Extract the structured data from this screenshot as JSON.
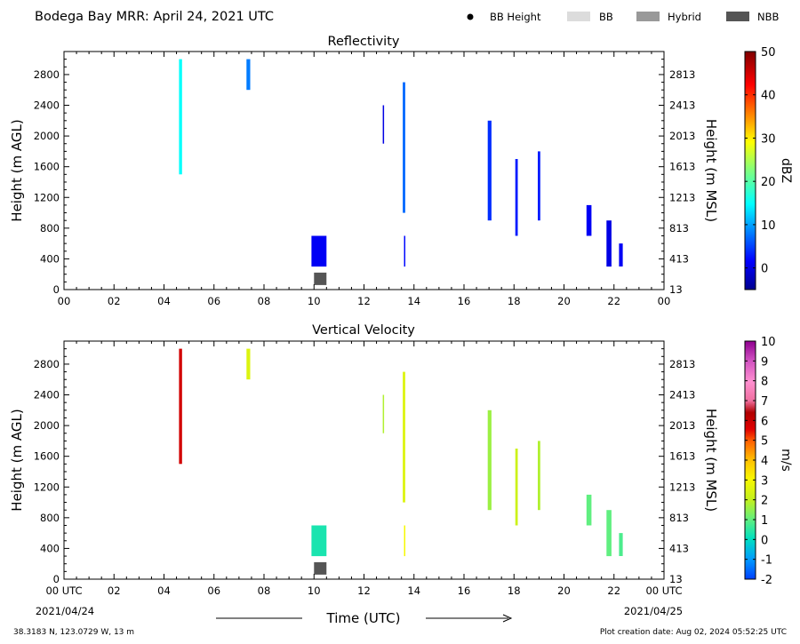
{
  "header": {
    "title": "Bodega Bay MRR:  April 24, 2021 UTC",
    "legend": [
      {
        "label": "BB Height",
        "kind": "dot",
        "color": "#000000"
      },
      {
        "label": "BB",
        "kind": "box",
        "color": "#dcdcdc"
      },
      {
        "label": "Hybrid",
        "kind": "box",
        "color": "#999999"
      },
      {
        "label": "NBB",
        "kind": "box",
        "color": "#555555"
      }
    ]
  },
  "footer": {
    "location": "38.3183 N, 123.0729 W, 13 m",
    "creation": "Plot creation date: Aug 02, 2024 05:52:25 UTC",
    "xlabel": "Time (UTC)",
    "start_date": "2021/04/24",
    "end_date": "2021/04/25"
  },
  "chart_data": [
    {
      "type": "heatmap",
      "title": "Reflectivity",
      "ylabel": "Height (m AGL)",
      "ylabel_right": "Height (m MSL)",
      "x_unit": "hour UTC",
      "xlim": [
        0,
        24
      ],
      "ylim": [
        0,
        3100
      ],
      "x_ticks": [
        "00",
        "02",
        "04",
        "06",
        "08",
        "10",
        "12",
        "14",
        "16",
        "18",
        "20",
        "22",
        "00"
      ],
      "y_ticks": [
        0,
        400,
        800,
        1200,
        1600,
        2000,
        2400,
        2800
      ],
      "y_ticks_right": [
        13,
        413,
        813,
        1213,
        1613,
        2013,
        2413,
        2813
      ],
      "grid": false,
      "colorbar": {
        "label": "dBZ",
        "min": -5,
        "max": 50,
        "ticks": [
          0,
          10,
          20,
          30,
          40,
          50
        ],
        "colormap": "jet"
      },
      "bright_band": [
        {
          "type": "NBB",
          "time": 10.25,
          "height": 140
        }
      ],
      "cells": [
        {
          "t0": 4.6,
          "t1": 4.72,
          "z0": 1500,
          "z1": 3000,
          "v": 15
        },
        {
          "t0": 7.3,
          "t1": 7.45,
          "z0": 2600,
          "z1": 3000,
          "v": 8
        },
        {
          "t0": 9.9,
          "t1": 10.5,
          "z0": 300,
          "z1": 700,
          "v": 1
        },
        {
          "t0": 12.75,
          "t1": 12.8,
          "z0": 1900,
          "z1": 2400,
          "v": 0
        },
        {
          "t0": 13.55,
          "t1": 13.65,
          "z0": 1000,
          "z1": 2700,
          "v": 7
        },
        {
          "t0": 13.6,
          "t1": 13.65,
          "z0": 300,
          "z1": 700,
          "v": 2
        },
        {
          "t0": 16.95,
          "t1": 17.1,
          "z0": 900,
          "z1": 2200,
          "v": 4
        },
        {
          "t0": 18.05,
          "t1": 18.15,
          "z0": 700,
          "z1": 1700,
          "v": 3
        },
        {
          "t0": 18.95,
          "t1": 19.05,
          "z0": 900,
          "z1": 1800,
          "v": 3
        },
        {
          "t0": 20.9,
          "t1": 21.1,
          "z0": 700,
          "z1": 1100,
          "v": 1
        },
        {
          "t0": 21.7,
          "t1": 21.9,
          "z0": 300,
          "z1": 900,
          "v": 0
        },
        {
          "t0": 22.2,
          "t1": 22.35,
          "z0": 300,
          "z1": 600,
          "v": 1
        }
      ]
    },
    {
      "type": "heatmap",
      "title": "Vertical Velocity",
      "ylabel": "Height (m AGL)",
      "ylabel_right": "Height (m MSL)",
      "x_unit": "hour UTC",
      "xlim": [
        0,
        24
      ],
      "ylim": [
        0,
        3100
      ],
      "x_ticks": [
        "00 UTC",
        "02",
        "04",
        "06",
        "08",
        "10",
        "12",
        "14",
        "16",
        "18",
        "20",
        "22",
        "00 UTC"
      ],
      "y_ticks": [
        0,
        400,
        800,
        1200,
        1600,
        2000,
        2400,
        2800
      ],
      "y_ticks_right": [
        13,
        413,
        813,
        1213,
        1613,
        2013,
        2413,
        2813
      ],
      "grid": false,
      "colorbar": {
        "label": "m/s",
        "min": -2,
        "max": 10,
        "ticks": [
          -2,
          -1,
          0,
          1,
          2,
          3,
          4,
          5,
          6,
          7,
          8,
          9,
          10
        ],
        "colormap": "velocity"
      },
      "bright_band": [
        {
          "type": "NBB",
          "time": 10.25,
          "height": 140
        }
      ],
      "cells": [
        {
          "t0": 4.6,
          "t1": 4.72,
          "z0": 1500,
          "z1": 3000,
          "v": 5.8
        },
        {
          "t0": 7.3,
          "t1": 7.45,
          "z0": 2600,
          "z1": 3000,
          "v": 2.5
        },
        {
          "t0": 9.9,
          "t1": 10.5,
          "z0": 300,
          "z1": 700,
          "v": 0.3
        },
        {
          "t0": 12.75,
          "t1": 12.8,
          "z0": 1900,
          "z1": 2400,
          "v": 1.8
        },
        {
          "t0": 13.55,
          "t1": 13.65,
          "z0": 1000,
          "z1": 2700,
          "v": 2.5
        },
        {
          "t0": 13.6,
          "t1": 13.65,
          "z0": 300,
          "z1": 700,
          "v": 3.0
        },
        {
          "t0": 16.95,
          "t1": 17.1,
          "z0": 900,
          "z1": 2200,
          "v": 1.6
        },
        {
          "t0": 18.05,
          "t1": 18.15,
          "z0": 700,
          "z1": 1700,
          "v": 2.2
        },
        {
          "t0": 18.95,
          "t1": 19.05,
          "z0": 900,
          "z1": 1800,
          "v": 1.8
        },
        {
          "t0": 20.9,
          "t1": 21.1,
          "z0": 700,
          "z1": 1100,
          "v": 1.0
        },
        {
          "t0": 21.7,
          "t1": 21.9,
          "z0": 300,
          "z1": 900,
          "v": 1.0
        },
        {
          "t0": 22.2,
          "t1": 22.35,
          "z0": 300,
          "z1": 600,
          "v": 0.8
        }
      ]
    }
  ]
}
